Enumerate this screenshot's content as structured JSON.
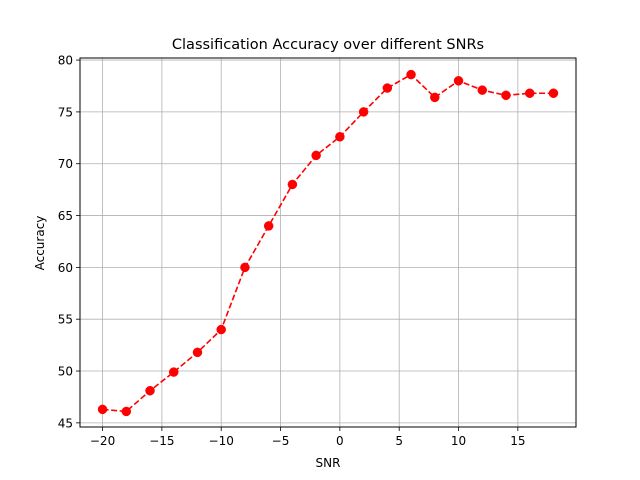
{
  "chart_data": {
    "type": "line",
    "title": "Classification Accuracy over different SNRs",
    "xlabel": "SNR",
    "ylabel": "Accuracy",
    "xlim": [
      -21.9,
      19.9
    ],
    "ylim": [
      44.6,
      80.2
    ],
    "xticks": [
      -20,
      -15,
      -10,
      -5,
      0,
      5,
      10,
      15
    ],
    "xtick_labels": [
      "−20",
      "−15",
      "−10",
      "−5",
      "0",
      "5",
      "10",
      "15"
    ],
    "yticks": [
      45,
      50,
      55,
      60,
      65,
      70,
      75,
      80
    ],
    "ytick_labels": [
      "45",
      "50",
      "55",
      "60",
      "65",
      "70",
      "75",
      "80"
    ],
    "grid": true,
    "line_style": "dashed",
    "marker": "circle",
    "color": "#ff0000",
    "series": [
      {
        "x": [
          -20,
          -18,
          -16,
          -14,
          -12,
          -10,
          -8,
          -6,
          -4,
          -2,
          0,
          2,
          4,
          6,
          8,
          10,
          12,
          14,
          16,
          18
        ],
        "y": [
          46.3,
          46.1,
          48.1,
          49.9,
          51.8,
          54.0,
          60.0,
          64.0,
          68.0,
          70.8,
          72.6,
          75.0,
          77.3,
          78.6,
          76.4,
          78.0,
          77.1,
          76.6,
          76.8,
          76.8
        ]
      }
    ]
  }
}
